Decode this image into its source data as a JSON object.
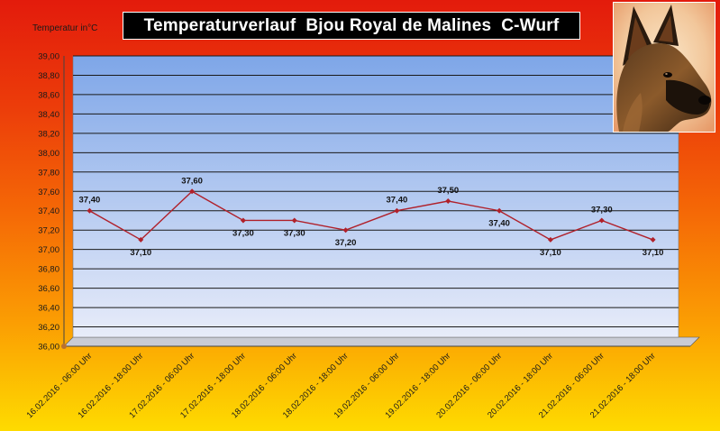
{
  "title": "Temperaturverlauf  Bjou Royal de Malines  C-Wurf",
  "chart_data": {
    "type": "line",
    "title": "Temperaturverlauf  Bjou Royal de Malines  C-Wurf",
    "ylabel": "Temperatur in°C",
    "xlabel": "",
    "ylim": [
      36.0,
      39.0
    ],
    "ytick_step": 0.2,
    "yticks": [
      "36,00",
      "36,20",
      "36,40",
      "36,60",
      "36,80",
      "37,00",
      "37,20",
      "37,40",
      "37,60",
      "37,80",
      "38,00",
      "38,20",
      "38,40",
      "38,60",
      "38,80",
      "39,00"
    ],
    "grid": true,
    "categories": [
      "16.02.2016 - 06:00 Uhr",
      "16.02.2016 - 18:00 Uhr",
      "17.02.2016 - 06:00 Uhr",
      "17.02.2016 - 18:00 Uhr",
      "18.02.2016 - 06:00 Uhr",
      "18.02.2016 - 18:00 Uhr",
      "19.02.2016 - 06:00 Uhr",
      "19.02.2016 - 18:00 Uhr",
      "20.02.2016 - 06:00 Uhr",
      "20.02.2016 - 18:00 Uhr",
      "21.02.2016 - 06:00 Uhr",
      "21.02.2016 - 18:00 Uhr"
    ],
    "values": [
      37.4,
      37.1,
      37.6,
      37.3,
      37.3,
      37.2,
      37.4,
      37.5,
      37.4,
      37.1,
      37.3,
      37.1
    ],
    "labels": [
      "37,40",
      "37,10",
      "37,60",
      "37,30",
      "37,30",
      "37,20",
      "37,40",
      "37,50",
      "37,40",
      "37,10",
      "37,30",
      "37,10"
    ],
    "label_position": [
      "above",
      "below",
      "above",
      "below",
      "below",
      "below",
      "above",
      "above",
      "below",
      "below",
      "above",
      "below"
    ],
    "series_color": "#b0202a"
  },
  "colors": {
    "plot_top": "#7ea6e8",
    "plot_bottom": "#e8ecf9",
    "gridline": "#1a1a1a",
    "background_top": "#e31b0c",
    "background_bottom": "#fedb00"
  },
  "photo_icon": "dog-portrait-icon"
}
